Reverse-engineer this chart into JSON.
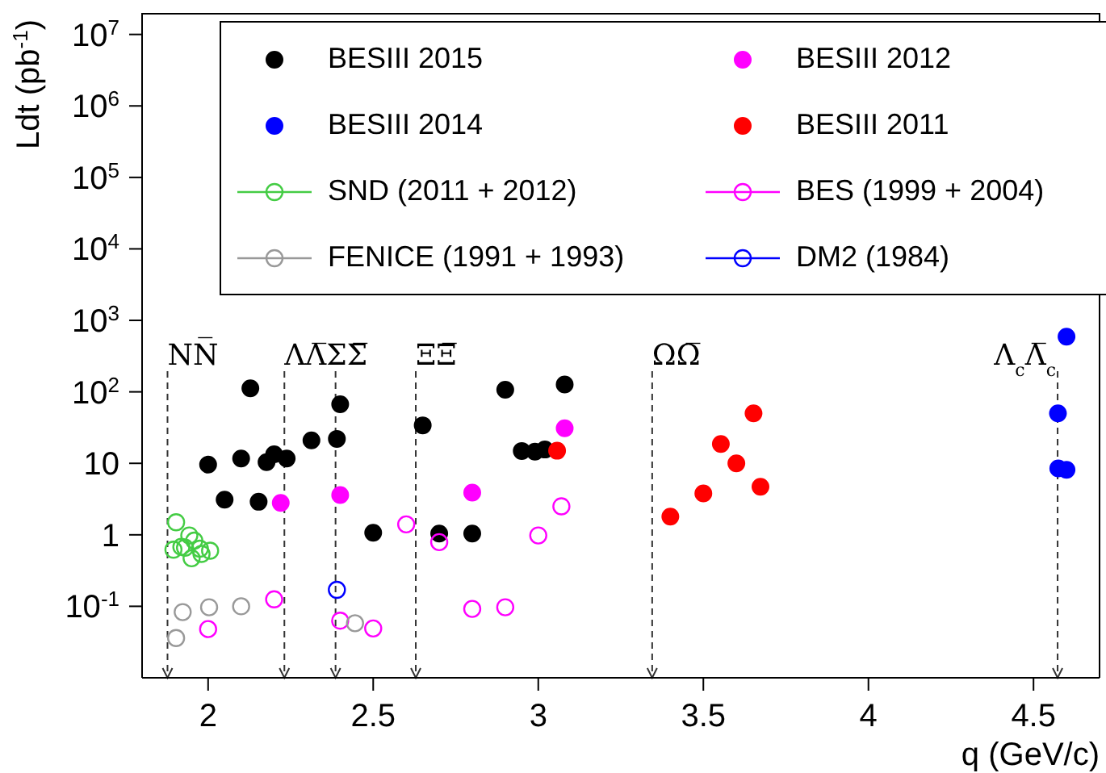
{
  "chart_data": {
    "type": "scatter",
    "xlabel": "q (GeV/c)",
    "ylabel": "Ldt (pb$^{-1}$)",
    "log": "y",
    "grid": false,
    "legend": "top",
    "xlim": [
      1.8,
      4.7
    ],
    "xticks": [
      2,
      2.5,
      3,
      3.5,
      4,
      4.5
    ],
    "ylim": [
      0.01,
      20000000
    ],
    "yticks": [
      {
        "value": 0.1,
        "label": "10$^{-1}$"
      },
      1,
      10,
      {
        "value": 100,
        "label": "10$^{2}$"
      },
      {
        "value": 1000,
        "label": "10$^{3}$"
      },
      {
        "value": 10000,
        "label": "10$^{4}$"
      },
      {
        "value": 100000,
        "label": "10$^{5}$"
      },
      {
        "value": 1000000,
        "label": "10$^{6}$"
      },
      {
        "value": 10000000,
        "label": "10$^{7}$"
      }
    ],
    "series": [
      {
        "name": "BESIII 2015",
        "color": "#000000",
        "marker": "circle",
        "x": [
          2.0,
          2.05,
          2.1,
          2.128,
          2.153,
          2.177,
          2.2,
          2.238,
          2.313,
          2.39,
          2.4,
          2.5,
          2.65,
          2.7,
          2.8,
          2.9,
          2.95,
          2.99,
          3.02,
          3.08
        ],
        "values": [
          9.6,
          3.1,
          11.7,
          112,
          2.9,
          10.4,
          13.4,
          11.7,
          21,
          22,
          67,
          1.07,
          34,
          1.04,
          1.04,
          107,
          14.9,
          14.6,
          15.6,
          127
        ]
      },
      {
        "name": "BESIII 2012",
        "color": "#ff00ff",
        "marker": "circle",
        "x": [
          2.22,
          2.4,
          2.8,
          3.08
        ],
        "values": [
          2.8,
          3.6,
          3.9,
          31
        ]
      },
      {
        "name": "BESIII 2014",
        "color": "#0000ff",
        "marker": "circle",
        "x": [
          4.574,
          4.575,
          4.6,
          4.6
        ],
        "values": [
          50,
          8.5,
          8.1,
          590
        ]
      },
      {
        "name": "BESIII 2011",
        "color": "#ff0000",
        "marker": "circle",
        "x": [
          3.057,
          3.4,
          3.5,
          3.553,
          3.6,
          3.652,
          3.673
        ],
        "values": [
          15,
          1.8,
          3.8,
          18.6,
          10,
          50,
          4.7
        ]
      },
      {
        "name": "SND (2011 + 2012)",
        "color": "#44cc44",
        "marker": "circle-open",
        "x": [
          1.895,
          1.903,
          1.919,
          1.93,
          1.943,
          1.95,
          1.958,
          1.975,
          1.98,
          2.006
        ],
        "values": [
          0.62,
          1.5,
          0.68,
          0.66,
          0.98,
          0.47,
          0.83,
          0.64,
          0.54,
          0.6
        ]
      },
      {
        "name": "BES (1999 + 2004)",
        "color": "#ff00ff",
        "marker": "circle-open",
        "x": [
          2.0,
          2.2,
          2.4,
          2.5,
          2.6,
          2.7,
          2.8,
          2.9,
          3.0,
          3.07
        ],
        "values": [
          0.048,
          0.125,
          0.063,
          0.049,
          1.4,
          0.79,
          0.092,
          0.097,
          0.98,
          2.5
        ]
      },
      {
        "name": "FENICE (1991 + 1993)",
        "color": "#999999",
        "marker": "circle-open",
        "x": [
          1.903,
          1.923,
          2.003,
          2.1,
          2.445
        ],
        "values": [
          0.036,
          0.083,
          0.097,
          0.1,
          0.058
        ]
      },
      {
        "name": "DM2 (1984)",
        "color": "#0000ff",
        "marker": "circle-open",
        "x": [
          2.39
        ],
        "values": [
          0.17
        ]
      }
    ],
    "ref_lines": [
      {
        "axis": "x",
        "value": 1.877,
        "label": "NN̅",
        "line_style": "dashed",
        "color": "#333333"
      },
      {
        "axis": "x",
        "value": 2.231,
        "label": "ΛΛ̅ΣΣ̅",
        "line_style": "dashed",
        "color": "#333333"
      },
      {
        "axis": "x",
        "value": 2.386,
        "label": null,
        "line_style": "dashed",
        "color": "#333333"
      },
      {
        "axis": "x",
        "value": 2.629,
        "label": "ΞΞ̅",
        "line_style": "dashed",
        "color": "#333333"
      },
      {
        "axis": "x",
        "value": 3.345,
        "label": "ΩΩ̅",
        "line_style": "dashed",
        "color": "#333333"
      },
      {
        "axis": "x",
        "value": 4.573,
        "label": "Λ$_{c}$Λ̅$_{c}$",
        "line_style": "dashed",
        "color": "#333333"
      }
    ]
  }
}
